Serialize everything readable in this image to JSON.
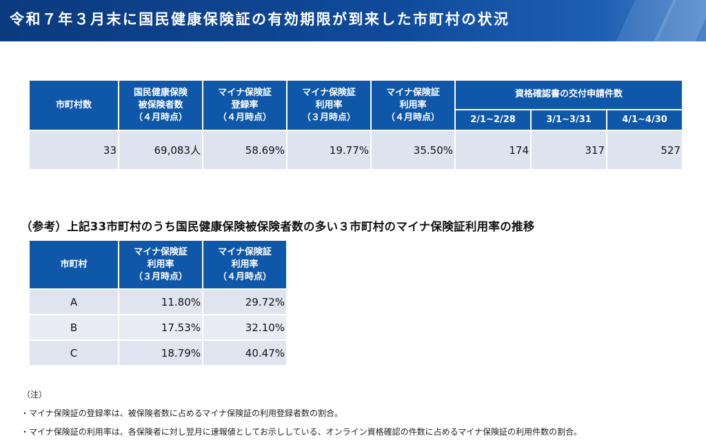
{
  "title": "令和７年３月末に国民健康保険証の有効期限が到来した市町村の状況",
  "table1": {
    "headers": {
      "municipalities": "市町村数",
      "insured_l1": "国民健康保険",
      "insured_l2": "被保険者数",
      "insured_l3": "（４月時点）",
      "reg_l1": "マイナ保険証",
      "reg_l2": "登録率",
      "reg_l3": "（４月時点）",
      "use_mar_l1": "マイナ保険証",
      "use_mar_l2": "利用率",
      "use_mar_l3": "（３月時点）",
      "use_apr_l1": "マイナ保険証",
      "use_apr_l2": "利用率",
      "use_apr_l3": "（４月時点）",
      "applications": "資格確認書の交付申請件数",
      "period_feb": "2/1~2/28",
      "period_mar": "3/1~3/31",
      "period_apr": "4/1~4/30"
    },
    "row": {
      "municipalities": "33",
      "insured": "69,083人",
      "reg_rate": "58.69%",
      "use_rate_mar": "19.77%",
      "use_rate_apr": "35.50%",
      "apps_feb": "174",
      "apps_mar": "317",
      "apps_apr": "527"
    }
  },
  "reference_heading": "（参考）上記33市町村のうち国民健康保険被保険者数の多い３市町村のマイナ保険証利用率の推移",
  "table2": {
    "headers": {
      "municipality": "市町村",
      "mar_l1": "マイナ保険証",
      "mar_l2": "利用率",
      "mar_l3": "（３月時点）",
      "apr_l1": "マイナ保険証",
      "apr_l2": "利用率",
      "apr_l3": "（４月時点）"
    },
    "rows": [
      {
        "name": "A",
        "mar": "11.80%",
        "apr": "29.72%"
      },
      {
        "name": "B",
        "mar": "17.53%",
        "apr": "32.10%"
      },
      {
        "name": "C",
        "mar": "18.79%",
        "apr": "40.47%"
      }
    ]
  },
  "notes": {
    "label": "（注）",
    "items": [
      "・マイナ保険証の登録率は、被保険者数に占めるマイナ保険証の利用登録者数の割合。",
      "・マイナ保険証の利用率は、各保険者に対し翌月に速報値としてお示ししている、オンライン資格確認の件数に占めるマイナ保険証の利用件数の割合。"
    ]
  },
  "colors": {
    "header_blue": "#0f57a8",
    "title_navy": "#0b3a7e",
    "cell_gray": "#dde3ef"
  }
}
